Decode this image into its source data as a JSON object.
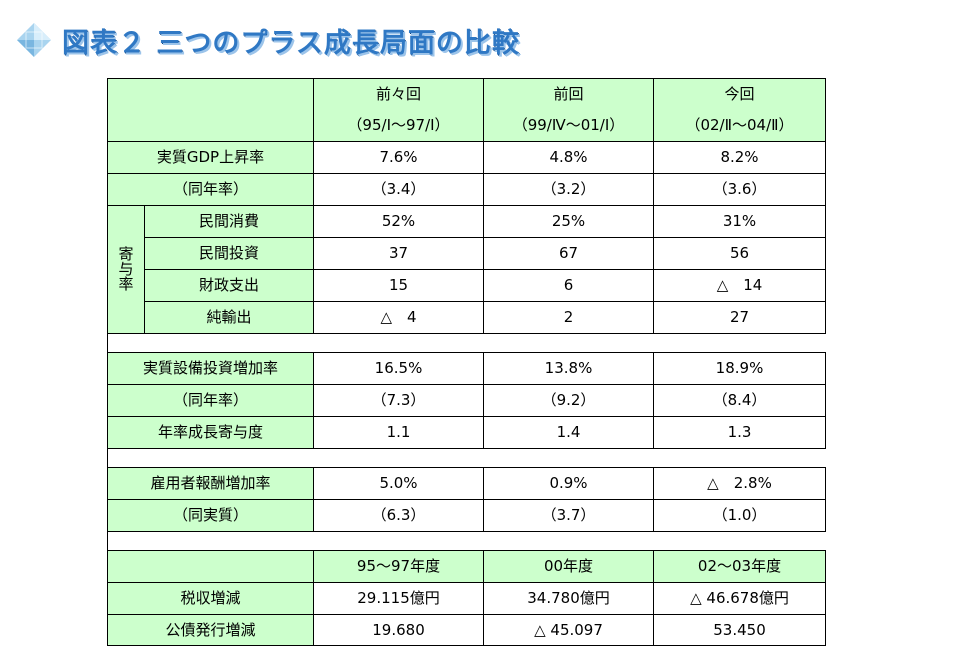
{
  "title": "図表２ 三つのプラス成長局面の比較",
  "columns": [
    {
      "name": "前々回",
      "period": "（95/Ⅰ～97/Ⅰ）"
    },
    {
      "name": "前回",
      "period": "（99/Ⅳ～01/Ⅰ）"
    },
    {
      "name": "今回",
      "period": "（02/Ⅱ～04/Ⅱ）"
    }
  ],
  "gdp": {
    "label": "実質GDP上昇率",
    "values": [
      "7.6%",
      "4.8%",
      "8.2%"
    ],
    "annual_label": "（同年率）",
    "annual_values": [
      "（3.4）",
      "（3.2）",
      "（3.6）"
    ]
  },
  "contrib": {
    "side_label": "寄与率",
    "rows": [
      {
        "label": "民間消費",
        "values": [
          "52%",
          "25%",
          "31%"
        ]
      },
      {
        "label": "民間投資",
        "values": [
          "37",
          "67",
          "56"
        ]
      },
      {
        "label": "財政支出",
        "values": [
          "15",
          "6",
          "△　14"
        ]
      },
      {
        "label": "純輸出",
        "values": [
          "△　4",
          "2",
          "27"
        ]
      }
    ]
  },
  "capex": {
    "label": "実質設備投資増加率",
    "values": [
      "16.5%",
      "13.8%",
      "18.9%"
    ],
    "annual_label": "（同年率）",
    "annual_values": [
      "（7.3）",
      "（9.2）",
      "（8.4）"
    ],
    "contrib_label": "年率成長寄与度",
    "contrib_values": [
      "1.1",
      "1.4",
      "1.3"
    ]
  },
  "wages": {
    "label": "雇用者報酬増加率",
    "values": [
      "5.0%",
      "0.9%",
      "△　2.8%"
    ],
    "real_label": "（同実質）",
    "real_values": [
      "（6.3）",
      "（3.7）",
      "（1.0）"
    ]
  },
  "fiscal": {
    "years": [
      "95～97年度",
      "00年度",
      "02～03年度"
    ],
    "rows": [
      {
        "label": "税収増減",
        "values": [
          "29.115億円",
          "34.780億円",
          "△ 46.678億円"
        ]
      },
      {
        "label": "公債発行増減",
        "values": [
          "19.680",
          "△ 45.097",
          "53.450"
        ]
      }
    ]
  }
}
